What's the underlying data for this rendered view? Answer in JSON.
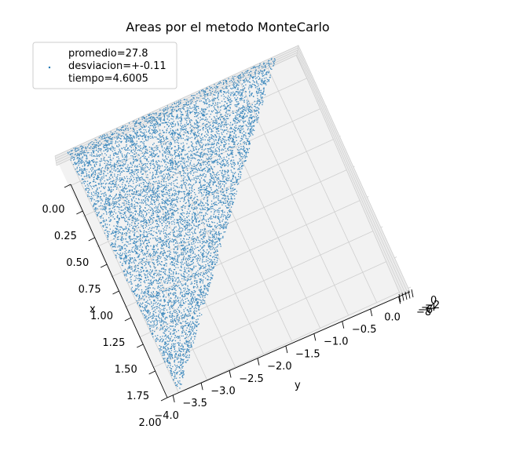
{
  "chart_data": {
    "type": "scatter",
    "title": "Areas por el metodo MonteCarlo",
    "xlabel": "x",
    "ylabel": "y",
    "zlabel": "",
    "x_ticks": [
      "0.00",
      "0.25",
      "0.50",
      "0.75",
      "1.00",
      "1.25",
      "1.50",
      "1.75",
      "2.00"
    ],
    "y_ticks": [
      "−4.0",
      "−3.5",
      "−3.0",
      "−2.5",
      "−2.0",
      "−1.5",
      "−1.0",
      "−0.5",
      "0.0"
    ],
    "z_ticks": [
      "0",
      "−2",
      "−4",
      "−6",
      "−8"
    ],
    "xlim": [
      0,
      2
    ],
    "ylim": [
      -4.1,
      0.2
    ],
    "region": {
      "shape": "triangle",
      "vertices": [
        [
          0,
          -3.7
        ],
        [
          0,
          0
        ],
        [
          2,
          0
        ]
      ]
    },
    "color": "#1f77b4",
    "legend": {
      "position": "upper-left",
      "lines": [
        "promedio=27.8",
        "desviacion=+-0.11",
        "tiempo=4.6005"
      ]
    }
  }
}
